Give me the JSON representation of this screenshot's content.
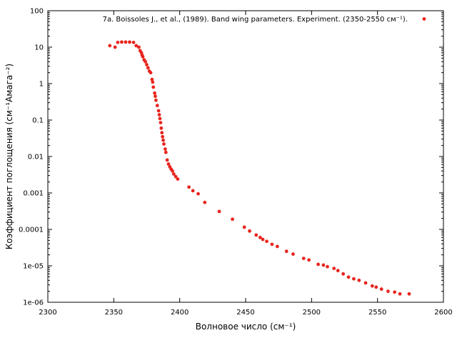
{
  "chart_data": {
    "type": "scatter",
    "title": "",
    "xlabel": "Волновое число (см⁻¹)",
    "ylabel": "Коэффициент поглощения (см⁻¹Амага⁻²)",
    "xlim": [
      2300,
      2600
    ],
    "ylim": [
      1e-06,
      100
    ],
    "yscale": "log",
    "grid": false,
    "legend_position": "top-right",
    "x_tick_labels": [
      "2300",
      "2350",
      "2400",
      "2450",
      "2500",
      "2550",
      "2600"
    ],
    "y_tick_labels": [
      "1e-06",
      "1e-05",
      "0.0001",
      "0.001",
      "0.01",
      "0.1",
      "1",
      "10",
      "100"
    ],
    "series": [
      {
        "name": "7a. Boissoles J., et al., (1989). Band wing parameters. Experiment. (2350-2550 см⁻¹).",
        "color": "#e8251f",
        "points": [
          [
            2347,
            11
          ],
          [
            2351,
            10
          ],
          [
            2353,
            13.5
          ],
          [
            2356,
            13.8
          ],
          [
            2359,
            13.8
          ],
          [
            2362,
            13.8
          ],
          [
            2365,
            13.5
          ],
          [
            2367,
            11
          ],
          [
            2369,
            10
          ],
          [
            2370,
            8
          ],
          [
            2371,
            7
          ],
          [
            2371.5,
            6
          ],
          [
            2372,
            5.5
          ],
          [
            2373,
            4.5
          ],
          [
            2374,
            4
          ],
          [
            2375,
            3.3
          ],
          [
            2376,
            2.7
          ],
          [
            2377,
            2.2
          ],
          [
            2378,
            2
          ],
          [
            2379,
            1.3
          ],
          [
            2379.5,
            1.1
          ],
          [
            2380,
            0.8
          ],
          [
            2381,
            0.55
          ],
          [
            2381.5,
            0.45
          ],
          [
            2382,
            0.35
          ],
          [
            2383,
            0.25
          ],
          [
            2384,
            0.18
          ],
          [
            2384.5,
            0.14
          ],
          [
            2385,
            0.11
          ],
          [
            2385.5,
            0.085
          ],
          [
            2386,
            0.06
          ],
          [
            2386.5,
            0.045
          ],
          [
            2387,
            0.035
          ],
          [
            2387.5,
            0.028
          ],
          [
            2388,
            0.022
          ],
          [
            2389,
            0.016
          ],
          [
            2389.5,
            0.013
          ],
          [
            2390.5,
            0.008
          ],
          [
            2391.5,
            0.0062
          ],
          [
            2392.5,
            0.0052
          ],
          [
            2393.5,
            0.0045
          ],
          [
            2394.5,
            0.004
          ],
          [
            2395.5,
            0.0033
          ],
          [
            2397,
            0.0028
          ],
          [
            2398.5,
            0.0024
          ],
          [
            2407,
            0.00145
          ],
          [
            2410,
            0.00115
          ],
          [
            2414,
            0.00095
          ],
          [
            2419,
            0.00055
          ],
          [
            2430,
            0.00031
          ],
          [
            2440,
            0.00019
          ],
          [
            2449,
            0.000115
          ],
          [
            2453,
            9e-05
          ],
          [
            2458,
            7e-05
          ],
          [
            2461,
            6e-05
          ],
          [
            2463,
            5.3e-05
          ],
          [
            2466,
            4.7e-05
          ],
          [
            2470,
            3.9e-05
          ],
          [
            2474,
            3.4e-05
          ],
          [
            2481,
            2.5e-05
          ],
          [
            2486,
            2.1e-05
          ],
          [
            2494,
            1.6e-05
          ],
          [
            2498,
            1.45e-05
          ],
          [
            2505,
            1.1e-05
          ],
          [
            2509,
            1.05e-05
          ],
          [
            2512,
            9.5e-06
          ],
          [
            2517,
            8.5e-06
          ],
          [
            2520,
            7.4e-06
          ],
          [
            2524,
            6e-06
          ],
          [
            2528,
            4.9e-06
          ],
          [
            2532,
            4.4e-06
          ],
          [
            2536,
            4e-06
          ],
          [
            2541,
            3.4e-06
          ],
          [
            2546,
            2.8e-06
          ],
          [
            2549,
            2.6e-06
          ],
          [
            2553,
            2.3e-06
          ],
          [
            2558,
            2e-06
          ],
          [
            2563,
            1.9e-06
          ],
          [
            2567,
            1.7e-06
          ],
          [
            2574,
            1.7e-06
          ]
        ]
      }
    ]
  }
}
